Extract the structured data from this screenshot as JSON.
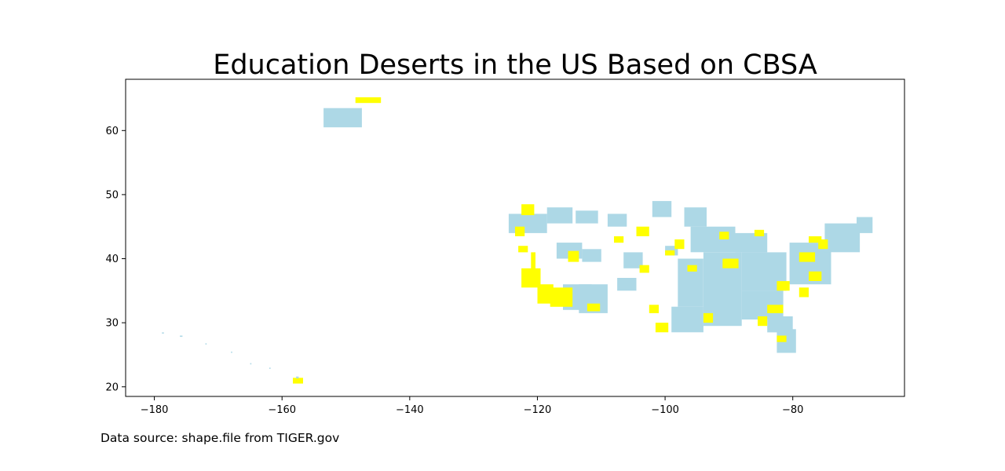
{
  "chart_data": {
    "type": "map",
    "title": "Education Deserts in the US Based on CBSA",
    "xlim": [
      -184.5,
      -62.5
    ],
    "ylim": [
      18.5,
      68
    ],
    "x_ticks": [
      -180,
      -160,
      -140,
      -120,
      -100,
      -80
    ],
    "y_ticks": [
      20,
      30,
      40,
      50,
      60
    ],
    "x_tick_labels": [
      "−180",
      "−160",
      "−140",
      "−120",
      "−100",
      "−80"
    ],
    "y_tick_labels": [
      "20",
      "30",
      "40",
      "50",
      "60"
    ],
    "grid": false,
    "legend": "none",
    "colors": {
      "desert": "#ffff00",
      "non_desert": "#add8e6",
      "frame": "#000000"
    },
    "regions": [
      {
        "class": "non_desert",
        "lon": [
          -153.5,
          -147.5
        ],
        "lat": [
          60.5,
          63.5
        ]
      },
      {
        "class": "desert",
        "lon": [
          -148.5,
          -144.5
        ],
        "lat": [
          64.3,
          65.2
        ]
      },
      {
        "class": "desert",
        "lon": [
          -158.3,
          -156.7
        ],
        "lat": [
          20.5,
          21.4
        ]
      },
      {
        "class": "non_desert",
        "lon": [
          -157.8,
          -157.4
        ],
        "lat": [
          21.3,
          21.6
        ]
      },
      {
        "class": "non_desert",
        "lon": [
          -178.8,
          -178.5
        ],
        "lat": [
          28.3,
          28.5
        ]
      },
      {
        "class": "non_desert",
        "lon": [
          -176,
          -175.6
        ],
        "lat": [
          27.8,
          28
        ]
      },
      {
        "class": "non_desert",
        "lon": [
          -172,
          -171.8
        ],
        "lat": [
          26.6,
          26.8
        ]
      },
      {
        "class": "non_desert",
        "lon": [
          -168,
          -167.8
        ],
        "lat": [
          25.3,
          25.5
        ]
      },
      {
        "class": "non_desert",
        "lon": [
          -165,
          -164.8
        ],
        "lat": [
          23.5,
          23.7
        ]
      },
      {
        "class": "non_desert",
        "lon": [
          -162,
          -161.8
        ],
        "lat": [
          22.8,
          23
        ]
      },
      {
        "class": "non_desert",
        "lon": [
          -124.5,
          -118.5
        ],
        "lat": [
          44,
          47
        ]
      },
      {
        "class": "non_desert",
        "lon": [
          -118.5,
          -114.5
        ],
        "lat": [
          45.5,
          48
        ]
      },
      {
        "class": "non_desert",
        "lon": [
          -114,
          -110.5
        ],
        "lat": [
          45.5,
          47.5
        ]
      },
      {
        "class": "non_desert",
        "lon": [
          -109,
          -106
        ],
        "lat": [
          45,
          47
        ]
      },
      {
        "class": "non_desert",
        "lon": [
          -117,
          -113
        ],
        "lat": [
          40,
          42.5
        ]
      },
      {
        "class": "non_desert",
        "lon": [
          -113,
          -110
        ],
        "lat": [
          39.5,
          41.5
        ]
      },
      {
        "class": "non_desert",
        "lon": [
          -116,
          -111.5
        ],
        "lat": [
          32,
          36
        ]
      },
      {
        "class": "non_desert",
        "lon": [
          -113.5,
          -109
        ],
        "lat": [
          31.5,
          36
        ]
      },
      {
        "class": "non_desert",
        "lon": [
          -107.5,
          -104.5
        ],
        "lat": [
          35,
          37
        ]
      },
      {
        "class": "non_desert",
        "lon": [
          -106.5,
          -103.5
        ],
        "lat": [
          38.5,
          41
        ]
      },
      {
        "class": "non_desert",
        "lon": [
          -102,
          -99
        ],
        "lat": [
          46.5,
          49
        ]
      },
      {
        "class": "non_desert",
        "lon": [
          -97,
          -93.5
        ],
        "lat": [
          45,
          48
        ]
      },
      {
        "class": "non_desert",
        "lon": [
          -96,
          -89
        ],
        "lat": [
          41,
          45
        ]
      },
      {
        "class": "non_desert",
        "lon": [
          -98,
          -94
        ],
        "lat": [
          32.5,
          40
        ]
      },
      {
        "class": "non_desert",
        "lon": [
          -94,
          -88
        ],
        "lat": [
          34,
          41
        ]
      },
      {
        "class": "non_desert",
        "lon": [
          -99,
          -94
        ],
        "lat": [
          28.5,
          32.5
        ]
      },
      {
        "class": "non_desert",
        "lon": [
          -94,
          -88
        ],
        "lat": [
          29.5,
          34
        ]
      },
      {
        "class": "non_desert",
        "lon": [
          -89,
          -84
        ],
        "lat": [
          41,
          44
        ]
      },
      {
        "class": "non_desert",
        "lon": [
          -88,
          -81
        ],
        "lat": [
          35,
          41
        ]
      },
      {
        "class": "non_desert",
        "lon": [
          -88,
          -81.5
        ],
        "lat": [
          30.5,
          35
        ]
      },
      {
        "class": "non_desert",
        "lon": [
          -82.5,
          -79.5
        ],
        "lat": [
          25.3,
          29
        ]
      },
      {
        "class": "non_desert",
        "lon": [
          -84,
          -80
        ],
        "lat": [
          28.5,
          31
        ]
      },
      {
        "class": "non_desert",
        "lon": [
          -80.5,
          -74
        ],
        "lat": [
          36,
          42.5
        ]
      },
      {
        "class": "non_desert",
        "lon": [
          -75,
          -69.5
        ],
        "lat": [
          41,
          45.5
        ]
      },
      {
        "class": "non_desert",
        "lon": [
          -70,
          -67.5
        ],
        "lat": [
          44,
          46.5
        ]
      },
      {
        "class": "non_desert",
        "lon": [
          -100,
          -98
        ],
        "lat": [
          40.5,
          42
        ]
      },
      {
        "class": "desert",
        "lon": [
          -122.5,
          -120.5
        ],
        "lat": [
          46.8,
          48.5
        ]
      },
      {
        "class": "desert",
        "lon": [
          -123.5,
          -122
        ],
        "lat": [
          43.5,
          45
        ]
      },
      {
        "class": "desert",
        "lon": [
          -123,
          -121.5
        ],
        "lat": [
          41,
          42
        ]
      },
      {
        "class": "desert",
        "lon": [
          -121,
          -120.3
        ],
        "lat": [
          38,
          41
        ]
      },
      {
        "class": "desert",
        "lon": [
          -122.5,
          -119.5
        ],
        "lat": [
          35.5,
          38.5
        ]
      },
      {
        "class": "desert",
        "lon": [
          -120,
          -117.5
        ],
        "lat": [
          33,
          36
        ]
      },
      {
        "class": "desert",
        "lon": [
          -118,
          -114.5
        ],
        "lat": [
          32.5,
          35.5
        ]
      },
      {
        "class": "desert",
        "lon": [
          -115.2,
          -113.5
        ],
        "lat": [
          39.5,
          41.2
        ]
      },
      {
        "class": "desert",
        "lon": [
          -112.2,
          -110.2
        ],
        "lat": [
          31.8,
          33
        ]
      },
      {
        "class": "desert",
        "lon": [
          -108,
          -106.5
        ],
        "lat": [
          42.5,
          43.5
        ]
      },
      {
        "class": "desert",
        "lon": [
          -104.5,
          -102.5
        ],
        "lat": [
          43.5,
          45
        ]
      },
      {
        "class": "desert",
        "lon": [
          -104,
          -102.5
        ],
        "lat": [
          37.8,
          39
        ]
      },
      {
        "class": "desert",
        "lon": [
          -102.5,
          -101
        ],
        "lat": [
          31.5,
          32.8
        ]
      },
      {
        "class": "desert",
        "lon": [
          -101.5,
          -99.5
        ],
        "lat": [
          28.5,
          30
        ]
      },
      {
        "class": "desert",
        "lon": [
          -100,
          -98.5
        ],
        "lat": [
          40.5,
          41.3
        ]
      },
      {
        "class": "desert",
        "lon": [
          -98.5,
          -97
        ],
        "lat": [
          41.5,
          43
        ]
      },
      {
        "class": "desert",
        "lon": [
          -91,
          -88.5
        ],
        "lat": [
          38.5,
          40
        ]
      },
      {
        "class": "desert",
        "lon": [
          -84,
          -81.5
        ],
        "lat": [
          31.5,
          32.8
        ]
      },
      {
        "class": "desert",
        "lon": [
          -82.5,
          -80.5
        ],
        "lat": [
          35,
          36.5
        ]
      },
      {
        "class": "desert",
        "lon": [
          -79,
          -77.5
        ],
        "lat": [
          34,
          35.5
        ]
      },
      {
        "class": "desert",
        "lon": [
          -77.5,
          -75.5
        ],
        "lat": [
          36.5,
          38
        ]
      },
      {
        "class": "desert",
        "lon": [
          -79,
          -76.5
        ],
        "lat": [
          39.5,
          41
        ]
      },
      {
        "class": "desert",
        "lon": [
          -76,
          -74.5
        ],
        "lat": [
          41.5,
          43
        ]
      },
      {
        "class": "desert",
        "lon": [
          -77.5,
          -75.5
        ],
        "lat": [
          42.5,
          43.5
        ]
      },
      {
        "class": "desert",
        "lon": [
          -91.5,
          -90
        ],
        "lat": [
          43,
          44.2
        ]
      },
      {
        "class": "desert",
        "lon": [
          -86,
          -84.5
        ],
        "lat": [
          43.5,
          44.5
        ]
      },
      {
        "class": "desert",
        "lon": [
          -82.5,
          -81
        ],
        "lat": [
          27,
          28
        ]
      },
      {
        "class": "desert",
        "lon": [
          -85.5,
          -84
        ],
        "lat": [
          29.5,
          31
        ]
      },
      {
        "class": "desert",
        "lon": [
          -94,
          -92.5
        ],
        "lat": [
          30,
          31.5
        ]
      },
      {
        "class": "desert",
        "lon": [
          -96.5,
          -95
        ],
        "lat": [
          38,
          39
        ]
      }
    ]
  },
  "footer": {
    "source_text": "Data source: shape.file from TIGER.gov"
  }
}
